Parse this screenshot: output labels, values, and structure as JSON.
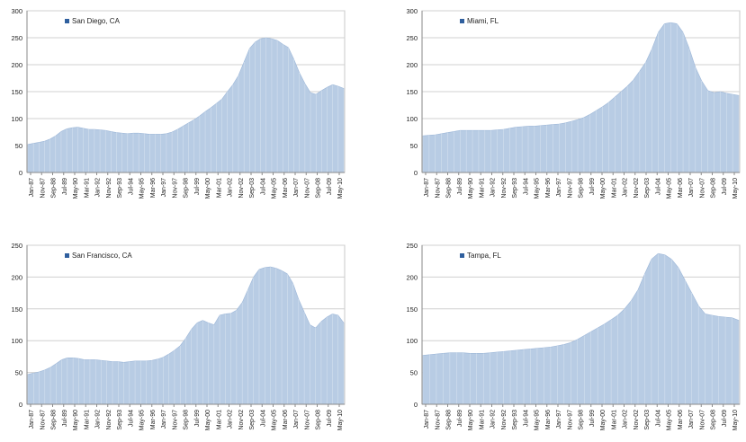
{
  "colors": {
    "fill": "#b8cce4",
    "stroke": "#9db7d8",
    "legend": "#2f5f9e",
    "grid": "#d0d0d0"
  },
  "chart_data": [
    {
      "type": "area",
      "series": [
        {
          "name": "San Diego, CA"
        }
      ],
      "ylim": [
        0,
        300
      ],
      "yticks": [
        0,
        50,
        100,
        150,
        200,
        250,
        300
      ],
      "grid": true,
      "legend": "top-left",
      "x_labels": [
        "Jan-87",
        "Nov-87",
        "Sep-88",
        "Jul-89",
        "May-90",
        "Mar-91",
        "Jan-92",
        "Nov-92",
        "Sep-93",
        "Jul-94",
        "May-95",
        "Mar-96",
        "Jan-97",
        "Nov-97",
        "Sep-98",
        "Jul-99",
        "May-00",
        "Mar-01",
        "Jan-02",
        "Nov-02",
        "Sep-03",
        "Jul-04",
        "May-05",
        "Mar-06",
        "Jan-07",
        "Nov-07",
        "Sep-08",
        "Jul-09",
        "May-10"
      ],
      "values": [
        52,
        54,
        56,
        58,
        62,
        68,
        76,
        81,
        83,
        84,
        82,
        80,
        80,
        79,
        78,
        76,
        74,
        73,
        72,
        73,
        73,
        72,
        71,
        71,
        71,
        72,
        75,
        80,
        86,
        92,
        98,
        105,
        113,
        120,
        128,
        136,
        150,
        163,
        180,
        205,
        230,
        242,
        248,
        250,
        248,
        245,
        238,
        232,
        210,
        185,
        165,
        148,
        145,
        152,
        158,
        163,
        160,
        156
      ]
    },
    {
      "type": "area",
      "series": [
        {
          "name": "Miami, FL"
        }
      ],
      "ylim": [
        0,
        300
      ],
      "yticks": [
        0,
        50,
        100,
        150,
        200,
        250,
        300
      ],
      "grid": true,
      "legend": "top-left",
      "x_labels": [
        "Jan-87",
        "Nov-87",
        "Sep-88",
        "Jul-89",
        "May-90",
        "Mar-91",
        "Jan-92",
        "Nov-92",
        "Sep-93",
        "Jul-94",
        "May-95",
        "Mar-96",
        "Jan-97",
        "Nov-97",
        "Sep-98",
        "Jul-99",
        "May-00",
        "Mar-01",
        "Jan-02",
        "Nov-02",
        "Sep-03",
        "Jul-04",
        "May-05",
        "Mar-06",
        "Jan-07",
        "Nov-07",
        "Sep-08",
        "Jul-09",
        "May-10"
      ],
      "values": [
        68,
        69,
        70,
        72,
        74,
        76,
        78,
        78,
        78,
        78,
        78,
        78,
        79,
        80,
        82,
        84,
        85,
        86,
        86,
        87,
        88,
        89,
        90,
        92,
        95,
        98,
        102,
        108,
        115,
        122,
        130,
        140,
        150,
        160,
        172,
        188,
        205,
        230,
        260,
        276,
        278,
        276,
        260,
        230,
        195,
        170,
        152,
        148,
        150,
        147,
        145,
        143
      ]
    },
    {
      "type": "area",
      "series": [
        {
          "name": "San Francisco, CA"
        }
      ],
      "ylim": [
        0,
        250
      ],
      "yticks": [
        0,
        50,
        100,
        150,
        200,
        250
      ],
      "grid": true,
      "legend": "top-left",
      "x_labels": [
        "Jan-87",
        "Nov-87",
        "Sep-88",
        "Jul-89",
        "May-90",
        "Mar-91",
        "Jan-92",
        "Nov-92",
        "Sep-93",
        "Jul-94",
        "May-95",
        "Mar-96",
        "Jan-97",
        "Nov-97",
        "Sep-98",
        "Jul-99",
        "May-00",
        "Mar-01",
        "Jan-02",
        "Nov-02",
        "Sep-03",
        "Jul-04",
        "May-05",
        "Mar-06",
        "Jan-07",
        "Nov-07",
        "Sep-08",
        "Jul-09",
        "May-10"
      ],
      "values": [
        47,
        49,
        51,
        54,
        58,
        64,
        70,
        73,
        73,
        72,
        70,
        70,
        70,
        69,
        68,
        67,
        67,
        66,
        67,
        68,
        68,
        68,
        69,
        71,
        74,
        79,
        85,
        92,
        104,
        118,
        128,
        132,
        128,
        125,
        140,
        142,
        143,
        148,
        160,
        180,
        200,
        212,
        215,
        216,
        214,
        210,
        205,
        190,
        165,
        145,
        125,
        120,
        130,
        137,
        142,
        140,
        128
      ]
    },
    {
      "type": "area",
      "series": [
        {
          "name": "Tampa, FL"
        }
      ],
      "ylim": [
        0,
        250
      ],
      "yticks": [
        0,
        50,
        100,
        150,
        200,
        250
      ],
      "grid": true,
      "legend": "top-left",
      "x_labels": [
        "Jan-87",
        "Nov-87",
        "Sep-88",
        "Jul-89",
        "May-90",
        "Mar-91",
        "Jan-92",
        "Nov-92",
        "Sep-93",
        "Jul-94",
        "May-95",
        "Mar-96",
        "Jan-97",
        "Nov-97",
        "Sep-98",
        "Jul-99",
        "May-00",
        "Mar-01",
        "Jan-02",
        "Nov-02",
        "Sep-03",
        "Jul-04",
        "May-05",
        "Mar-06",
        "Jan-07",
        "Nov-07",
        "Sep-08",
        "Jul-09",
        "May-10"
      ],
      "values": [
        77,
        78,
        79,
        80,
        81,
        81,
        81,
        80,
        80,
        80,
        81,
        82,
        83,
        84,
        85,
        86,
        87,
        88,
        89,
        90,
        92,
        94,
        97,
        102,
        108,
        114,
        120,
        126,
        133,
        140,
        150,
        163,
        180,
        205,
        228,
        237,
        235,
        228,
        215,
        195,
        175,
        155,
        142,
        140,
        138,
        137,
        136,
        132
      ]
    }
  ]
}
